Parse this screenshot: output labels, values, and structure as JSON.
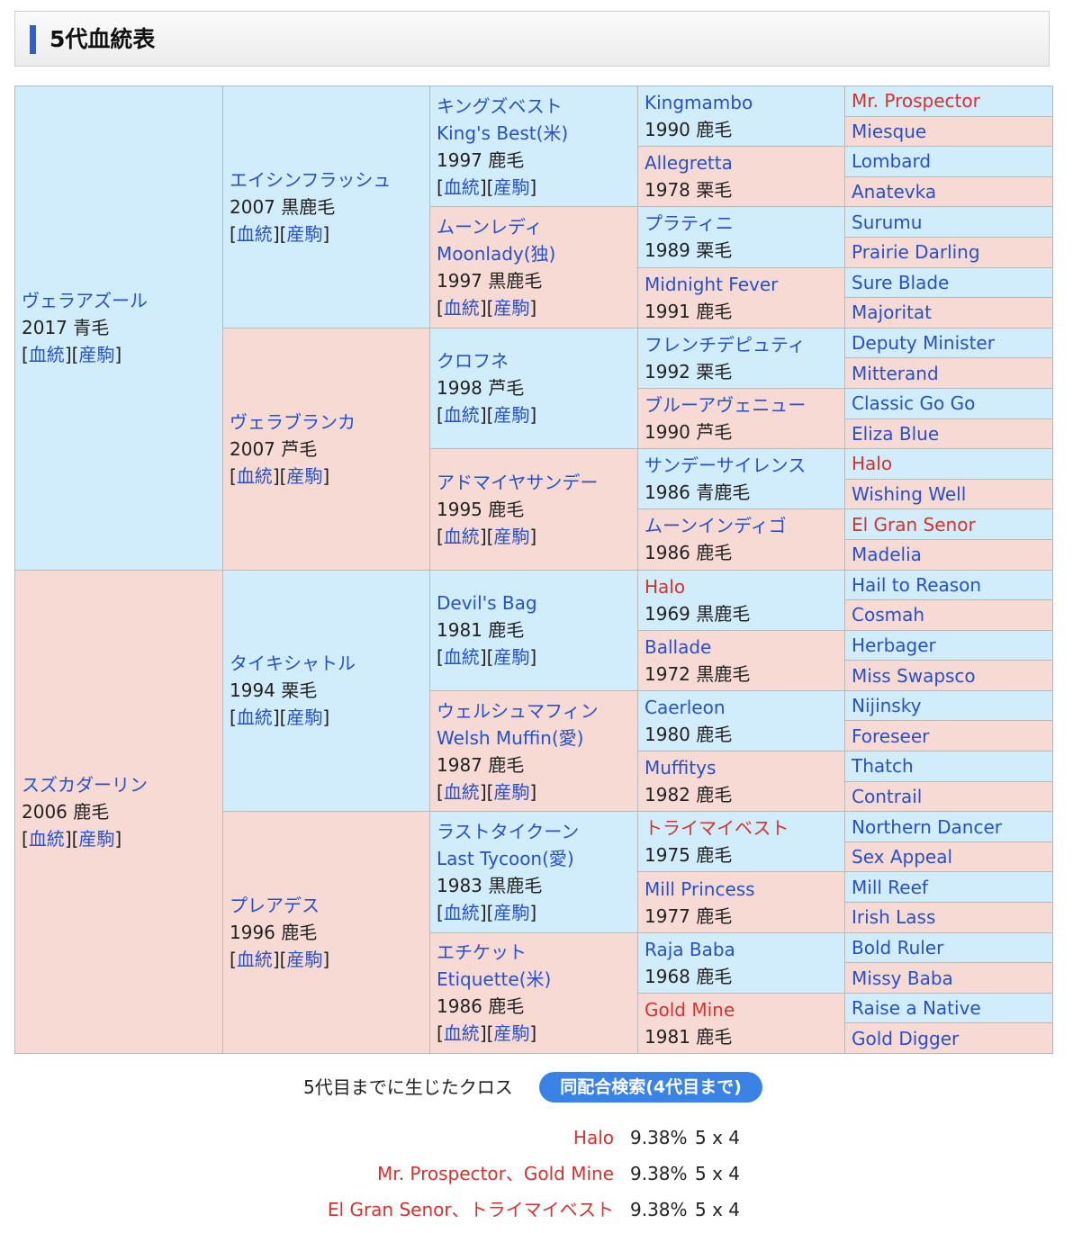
{
  "header": {
    "title": "5代血統表"
  },
  "pedigree": {
    "g1": [
      {
        "name": "ヴェラアズール",
        "info": "2017 青毛"
      },
      {
        "name": "スズカダーリン",
        "info": "2006 鹿毛"
      }
    ],
    "g2": [
      {
        "name": "エイシンフラッシュ",
        "info": "2007 黒鹿毛"
      },
      {
        "name": "ヴェラブランカ",
        "info": "2007 芦毛"
      },
      {
        "name": "タイキシャトル",
        "info": "1994 栗毛"
      },
      {
        "name": "プレアデス",
        "info": "1996 鹿毛"
      }
    ],
    "g3": [
      {
        "name": "キングズベスト",
        "en": "King's Best(米)",
        "info": "1997 鹿毛"
      },
      {
        "name": "ムーンレディ",
        "en": "Moonlady(独)",
        "info": "1997 黒鹿毛"
      },
      {
        "name": "クロフネ",
        "info": "1998 芦毛"
      },
      {
        "name": "アドマイヤサンデー",
        "info": "1995 鹿毛"
      },
      {
        "name": "Devil's Bag",
        "info": "1981 鹿毛"
      },
      {
        "name": "ウェルシュマフィン",
        "en": "Welsh Muffin(愛)",
        "info": "1987 鹿毛"
      },
      {
        "name": "ラストタイクーン",
        "en": "Last Tycoon(愛)",
        "info": "1983 黒鹿毛"
      },
      {
        "name": "エチケット",
        "en": "Etiquette(米)",
        "info": "1986 鹿毛"
      }
    ],
    "g4": [
      {
        "name": "Kingmambo",
        "info": "1990 鹿毛"
      },
      {
        "name": "Allegretta",
        "info": "1978 栗毛"
      },
      {
        "name": "プラティニ",
        "info": "1989 栗毛"
      },
      {
        "name": "Midnight Fever",
        "info": "1991 鹿毛"
      },
      {
        "name": "フレンチデピュティ",
        "info": "1992 栗毛"
      },
      {
        "name": "ブルーアヴェニュー",
        "info": "1990 芦毛"
      },
      {
        "name": "サンデーサイレンス",
        "info": "1986 青鹿毛"
      },
      {
        "name": "ムーンインディゴ",
        "info": "1986 鹿毛"
      },
      {
        "name": "Halo",
        "info": "1969 黒鹿毛"
      },
      {
        "name": "Ballade",
        "info": "1972 黒鹿毛"
      },
      {
        "name": "Caerleon",
        "info": "1980 鹿毛"
      },
      {
        "name": "Muffitys",
        "info": "1982 鹿毛"
      },
      {
        "name": "トライマイベスト",
        "info": "1975 鹿毛"
      },
      {
        "name": "Mill Princess",
        "info": "1977 鹿毛"
      },
      {
        "name": "Raja Baba",
        "info": "1968 鹿毛"
      },
      {
        "name": "Gold Mine",
        "info": "1981 鹿毛"
      }
    ],
    "g5": [
      "Mr. Prospector",
      "Miesque",
      "Lombard",
      "Anatevka",
      "Surumu",
      "Prairie Darling",
      "Sure Blade",
      "Majoritat",
      "Deputy Minister",
      "Mitterand",
      "Classic Go Go",
      "Eliza Blue",
      "Halo",
      "Wishing Well",
      "El Gran Senor",
      "Madelia",
      "Hail to Reason",
      "Cosmah",
      "Herbager",
      "Miss Swapsco",
      "Nijinsky",
      "Foreseer",
      "Thatch",
      "Contrail",
      "Northern Dancer",
      "Sex Appeal",
      "Mill Reef",
      "Irish Lass",
      "Bold Ruler",
      "Missy Baba",
      "Raise a Native",
      "Gold Digger"
    ],
    "links": {
      "open": "[",
      "pedigree": "血統",
      "mid": "][",
      "progeny": "産駒",
      "close": "]"
    }
  },
  "cross": {
    "title": "5代目までに生じたクロス",
    "search_button": "同配合検索(4代目まで)",
    "rows": [
      {
        "names": "Halo",
        "percent": "9.38%",
        "gen": "5 x 4"
      },
      {
        "names": "Mr. Prospector、Gold Mine",
        "percent": "9.38%",
        "gen": "5 x 4"
      },
      {
        "names": "El Gran Senor、トライマイベスト",
        "percent": "9.38%",
        "gen": "5 x 4"
      }
    ]
  },
  "colors": {
    "male_bg": "#d1ecfb",
    "female_bg": "#f8dad4",
    "link": "#2750c9",
    "cross_highlight": "#d7312e",
    "button": "#3b82e6"
  }
}
